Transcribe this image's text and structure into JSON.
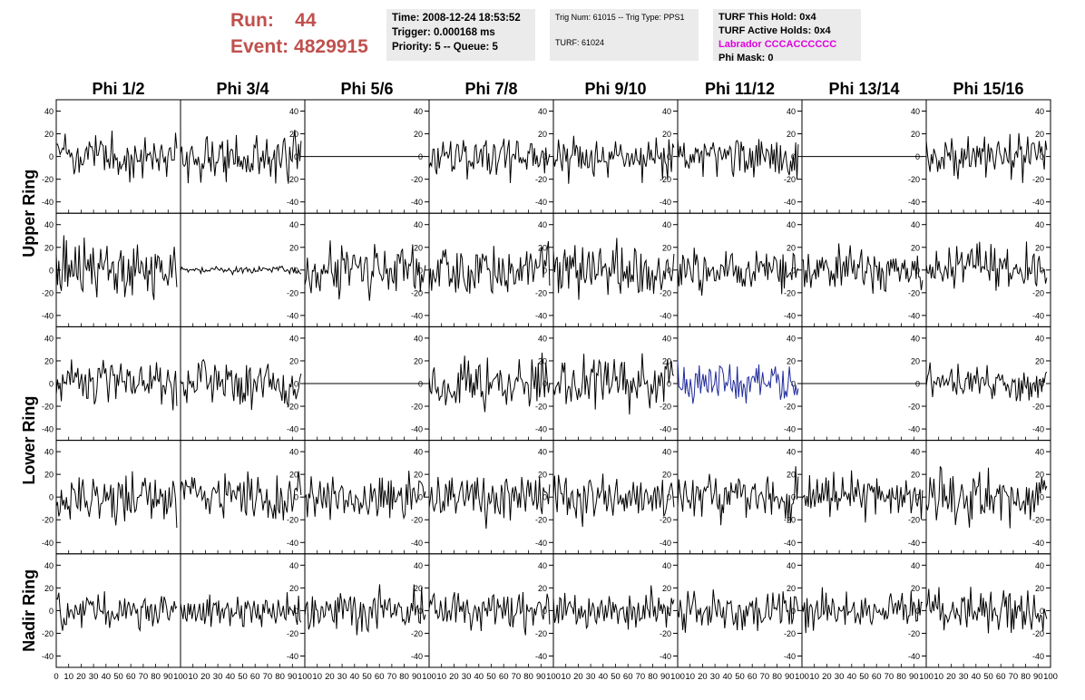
{
  "header": {
    "run_label": "Run:",
    "run_value": "44",
    "event_label": "Event:",
    "event_value": "4829915"
  },
  "time_box": {
    "time": "Time: 2008-12-24 18:53:52",
    "trigger": "Trigger: 0.000168 ms",
    "priority": "Priority: 5 -- Queue: 5"
  },
  "trig_box": {
    "trig": "Trig Num: 61015 -- Trig Type: PPS1",
    "turf": "TURF: 61024"
  },
  "turf_box": {
    "this_hold": "TURF This Hold: 0x4",
    "active_holds": "TURF Active Holds: 0x4",
    "labrador": "Labrador CCCACCCCCC",
    "phi_mask": "Phi Mask: 0"
  },
  "colors": {
    "header_red": "#c0504d",
    "labrador_magenta": "#e000e0",
    "trace": "#000000",
    "highlight_trace": "#1f2a9a",
    "info_bg": "#ebebeb"
  },
  "chart_data": {
    "type": "line",
    "columns": [
      "Phi 1/2",
      "Phi 3/4",
      "Phi 5/6",
      "Phi 7/8",
      "Phi 9/10",
      "Phi 11/12",
      "Phi 13/14",
      "Phi 15/16"
    ],
    "rows": [
      {
        "name": "Upper Ring",
        "panels": 2
      },
      {
        "name": "Lower Ring",
        "panels": 2
      },
      {
        "name": "Nadir Ring",
        "panels": 1
      }
    ],
    "ylim": [
      -50,
      50
    ],
    "yticks": [
      -40,
      -20,
      0,
      20,
      40
    ],
    "xlim": [
      0,
      100
    ],
    "xticks": [
      0,
      10,
      20,
      30,
      40,
      50,
      60,
      70,
      80,
      90,
      100
    ],
    "samples": 96,
    "panels": [
      [
        {
          "amp": 12,
          "seed": 3
        },
        {
          "amp": 13,
          "seed": 7
        },
        {
          "amp": 0,
          "seed": 11
        },
        {
          "amp": 12,
          "seed": 13
        },
        {
          "amp": 12,
          "seed": 17
        },
        {
          "amp": 12,
          "seed": 19
        },
        {
          "amp": 0,
          "seed": 23
        },
        {
          "amp": 12,
          "seed": 29
        }
      ],
      [
        {
          "amp": 17,
          "seed": 31
        },
        {
          "amp": 2,
          "seed": 37
        },
        {
          "amp": 14,
          "seed": 41
        },
        {
          "amp": 13,
          "seed": 43
        },
        {
          "amp": 14,
          "seed": 47
        },
        {
          "amp": 11,
          "seed": 53
        },
        {
          "amp": 12,
          "seed": 59
        },
        {
          "amp": 13,
          "seed": 61
        }
      ],
      [
        {
          "amp": 14,
          "seed": 67
        },
        {
          "amp": 13,
          "seed": 71
        },
        {
          "amp": 0,
          "seed": 73
        },
        {
          "amp": 14,
          "seed": 79
        },
        {
          "amp": 14,
          "seed": 83
        },
        {
          "amp": 11,
          "seed": 89,
          "highlight": true
        },
        {
          "amp": 0,
          "seed": 97
        },
        {
          "amp": 10,
          "seed": 101
        }
      ],
      [
        {
          "amp": 14,
          "seed": 103
        },
        {
          "amp": 13,
          "seed": 107
        },
        {
          "amp": 13,
          "seed": 109
        },
        {
          "amp": 13,
          "seed": 113
        },
        {
          "amp": 13,
          "seed": 127
        },
        {
          "amp": 13,
          "seed": 131
        },
        {
          "amp": 12,
          "seed": 137
        },
        {
          "amp": 13,
          "seed": 139
        }
      ],
      [
        {
          "amp": 11,
          "seed": 149
        },
        {
          "amp": 10,
          "seed": 151
        },
        {
          "amp": 11,
          "seed": 157
        },
        {
          "amp": 10,
          "seed": 163
        },
        {
          "amp": 11,
          "seed": 167
        },
        {
          "amp": 11,
          "seed": 173
        },
        {
          "amp": 10,
          "seed": 179
        },
        {
          "amp": 11,
          "seed": 181
        }
      ]
    ]
  }
}
